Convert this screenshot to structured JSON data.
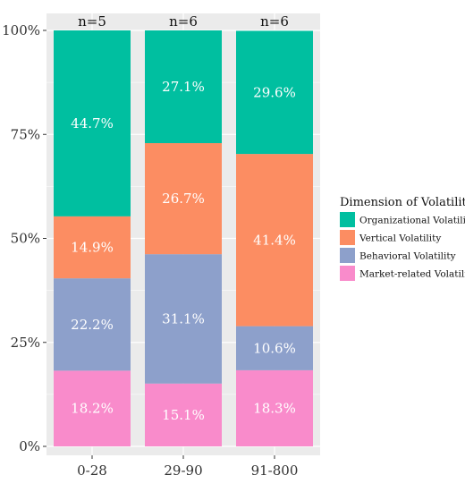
{
  "chart_data": {
    "type": "bar",
    "stacked": true,
    "normalized": true,
    "categories": [
      "0-28",
      "29-90",
      "91-800"
    ],
    "top_labels": [
      "n=5",
      "n=6",
      "n=6"
    ],
    "y_ticks": [
      "0%",
      "25%",
      "50%",
      "75%",
      "100%"
    ],
    "ylim": [
      0,
      100
    ],
    "grid": true,
    "legend": {
      "title": "Dimension of Volatility",
      "position": "right"
    },
    "series": [
      {
        "name": "Organizational Volatility",
        "color": "#00BFA0",
        "values": [
          44.7,
          27.1,
          29.6
        ],
        "labels": [
          "44.7%",
          "27.1%",
          "29.6%"
        ]
      },
      {
        "name": "Vertical Volatility",
        "color": "#FC8D62",
        "values": [
          14.9,
          26.7,
          41.4
        ],
        "labels": [
          "14.9%",
          "26.7%",
          "41.4%"
        ]
      },
      {
        "name": "Behavioral Volatility",
        "color": "#8DA0CB",
        "values": [
          22.2,
          31.1,
          10.6
        ],
        "labels": [
          "22.2%",
          "31.1%",
          "10.6%"
        ]
      },
      {
        "name": "Market-related Volatility",
        "color": "#F98BCB",
        "values": [
          18.2,
          15.1,
          18.3
        ],
        "labels": [
          "18.2%",
          "15.1%",
          "18.3%"
        ]
      }
    ]
  }
}
